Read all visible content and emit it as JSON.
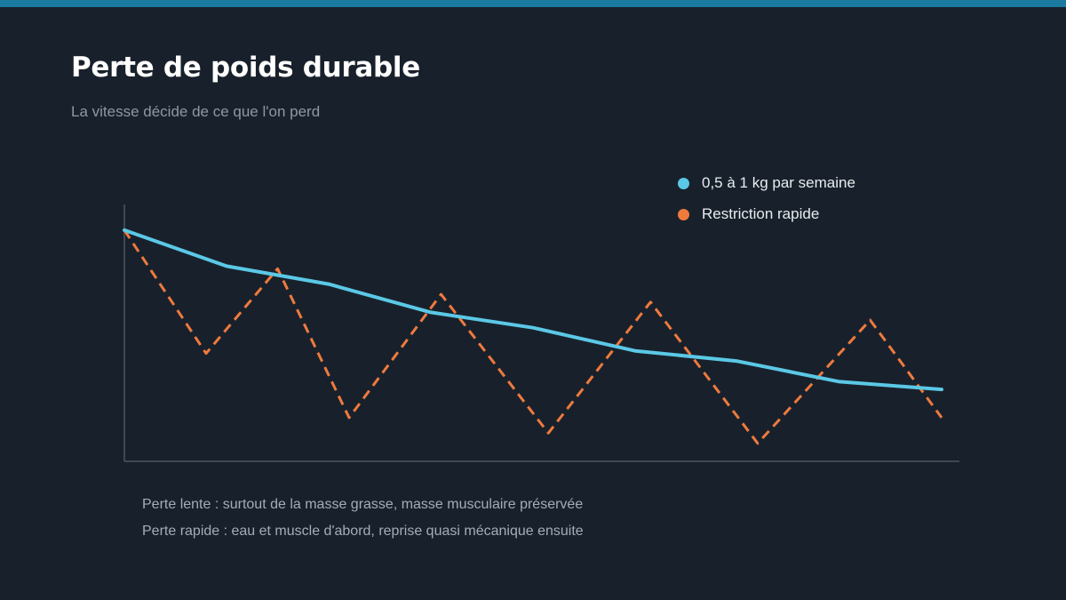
{
  "header": {
    "title": "Perte de poids durable",
    "subtitle": "La vitesse décide de ce que l'on perd"
  },
  "colors": {
    "background": "#18212b",
    "top_bar": "#1a7aa0",
    "slow_series": "#5bc8e6",
    "fast_series": "#ee7a3e",
    "axis": "#4a5560"
  },
  "chart_data": {
    "type": "line",
    "title": "",
    "xlabel": "",
    "ylabel": "",
    "x": [
      0,
      1,
      2,
      3,
      4,
      5,
      6,
      7,
      8,
      9,
      10,
      11,
      12,
      13,
      14,
      15,
      16
    ],
    "ylim": [
      0,
      100
    ],
    "grid": false,
    "legend_position": "top-right",
    "series": [
      {
        "name": "0,5 à 1 kg par semaine",
        "color": "#5bc8e6",
        "style": "solid",
        "points": [
          [
            0,
            90
          ],
          [
            2,
            76
          ],
          [
            4,
            69
          ],
          [
            6,
            58
          ],
          [
            8,
            52
          ],
          [
            10,
            43
          ],
          [
            12,
            39
          ],
          [
            14,
            31
          ],
          [
            16,
            28
          ]
        ]
      },
      {
        "name": "Restriction rapide",
        "color": "#ee7a3e",
        "style": "dashed",
        "points": [
          [
            0,
            90
          ],
          [
            1.6,
            42
          ],
          [
            3,
            75
          ],
          [
            4.4,
            17
          ],
          [
            6.2,
            65
          ],
          [
            8.3,
            11
          ],
          [
            10.3,
            62
          ],
          [
            12.4,
            7
          ],
          [
            14.6,
            55
          ],
          [
            16,
            17
          ]
        ]
      }
    ]
  },
  "notes": [
    "Perte lente : surtout de la masse grasse, masse musculaire préservée",
    "Perte rapide : eau et muscle d'abord, reprise quasi mécanique ensuite"
  ]
}
